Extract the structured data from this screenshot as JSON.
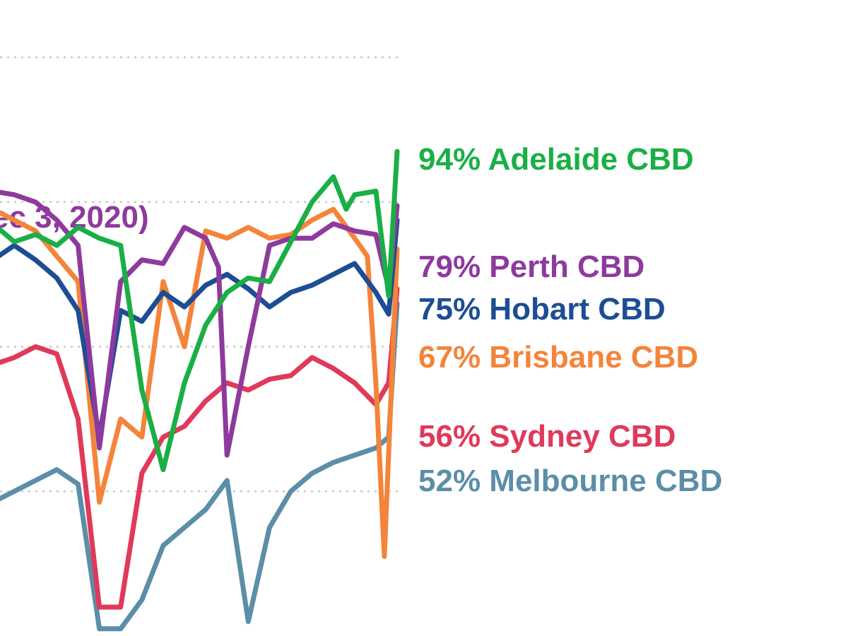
{
  "chart_data": {
    "type": "line",
    "title_fragment": "ec 3, 2020)",
    "xlabel": "",
    "ylabel": "",
    "ylim": [
      -40,
      130
    ],
    "grid": true,
    "gridlines_y": [
      120,
      80,
      40,
      0
    ],
    "legend": "end-labels-right",
    "series": [
      {
        "key": "adelaide",
        "label": "94% Adelaide CBD",
        "color": "#1aaf45",
        "end_value": 94,
        "x": [
          0,
          5,
          10,
          15,
          20,
          25,
          30,
          35,
          40,
          45,
          50,
          55,
          60,
          65,
          70,
          75,
          80,
          85,
          88,
          90,
          95,
          98,
          100
        ],
        "y": [
          64,
          74,
          69,
          71,
          68,
          73,
          70,
          68,
          28,
          6,
          30,
          46,
          55,
          59,
          58,
          69,
          80,
          87,
          78,
          82,
          83,
          54,
          94
        ]
      },
      {
        "key": "perth",
        "label": "79% Perth CBD",
        "color": "#8e3a9d",
        "end_value": 79,
        "x": [
          0,
          5,
          10,
          15,
          20,
          25,
          30,
          35,
          40,
          45,
          50,
          55,
          58,
          60,
          65,
          70,
          75,
          80,
          85,
          90,
          95,
          98,
          100
        ],
        "y": [
          88,
          83,
          82,
          80,
          75,
          68,
          12,
          58,
          64,
          63,
          73,
          70,
          62,
          10,
          40,
          68,
          70,
          70,
          74,
          72,
          71,
          56,
          79
        ]
      },
      {
        "key": "hobart",
        "label": "75% Hobart CBD",
        "color": "#1d4d94",
        "end_value": 75,
        "x": [
          0,
          5,
          10,
          15,
          20,
          25,
          30,
          35,
          40,
          45,
          50,
          55,
          60,
          65,
          70,
          75,
          80,
          85,
          90,
          95,
          98,
          100
        ],
        "y": [
          61,
          64,
          68,
          64,
          59,
          50,
          15,
          50,
          47,
          55,
          51,
          57,
          60,
          56,
          51,
          55,
          57,
          60,
          63,
          55,
          49,
          75
        ]
      },
      {
        "key": "brisbane",
        "label": "67% Brisbane CBD",
        "color": "#f4843a",
        "end_value": 67,
        "x": [
          0,
          5,
          10,
          15,
          20,
          25,
          30,
          35,
          40,
          45,
          50,
          55,
          60,
          65,
          70,
          75,
          80,
          85,
          90,
          93,
          95,
          97,
          100
        ],
        "y": [
          74,
          78,
          75,
          72,
          65,
          58,
          -3,
          20,
          15,
          58,
          40,
          72,
          70,
          73,
          70,
          71,
          75,
          78,
          70,
          65,
          30,
          -18,
          67
        ]
      },
      {
        "key": "sydney",
        "label": "56% Sydney CBD",
        "color": "#e0395a",
        "end_value": 56,
        "x": [
          0,
          5,
          10,
          15,
          20,
          25,
          30,
          35,
          40,
          45,
          50,
          55,
          60,
          65,
          70,
          75,
          80,
          85,
          90,
          95,
          98,
          100
        ],
        "y": [
          36,
          35,
          37,
          40,
          38,
          20,
          -32,
          -32,
          5,
          15,
          18,
          25,
          30,
          28,
          31,
          32,
          37,
          34,
          30,
          24,
          30,
          56
        ]
      },
      {
        "key": "melbourne",
        "label": "52% Melbourne CBD",
        "color": "#5b8ea8",
        "end_value": 52,
        "x": [
          0,
          5,
          10,
          15,
          20,
          25,
          30,
          35,
          40,
          45,
          50,
          55,
          60,
          65,
          70,
          75,
          80,
          85,
          90,
          95,
          98,
          100
        ],
        "y": [
          -5,
          -3,
          0,
          3,
          6,
          2,
          -38,
          -38,
          -30,
          -15,
          -10,
          -5,
          3,
          -36,
          -10,
          0,
          5,
          8,
          10,
          12,
          15,
          52
        ]
      }
    ]
  }
}
